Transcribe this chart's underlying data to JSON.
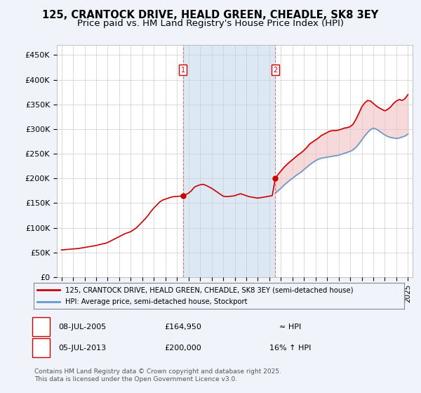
{
  "title": "125, CRANTOCK DRIVE, HEALD GREEN, CHEADLE, SK8 3EY",
  "subtitle": "Price paid vs. HM Land Registry's House Price Index (HPI)",
  "title_fontsize": 10.5,
  "subtitle_fontsize": 9.5,
  "ylabel_ticks": [
    "£0",
    "£50K",
    "£100K",
    "£150K",
    "£200K",
    "£250K",
    "£300K",
    "£350K",
    "£400K",
    "£450K"
  ],
  "ytick_values": [
    0,
    50000,
    100000,
    150000,
    200000,
    250000,
    300000,
    350000,
    400000,
    450000
  ],
  "ylim": [
    0,
    470000
  ],
  "xlim_left": 1994.6,
  "xlim_right": 2025.4,
  "background_color": "#f0f4fa",
  "plot_bg": "#ffffff",
  "shaded_bg_color": "#dde8f5",
  "red_color": "#cc0000",
  "blue_color": "#6699cc",
  "dashed_line_color": "#dd6666",
  "grid_color": "#cccccc",
  "legend1_label": "125, CRANTOCK DRIVE, HEALD GREEN, CHEADLE, SK8 3EY (semi-detached house)",
  "legend2_label": "HPI: Average price, semi-detached house, Stockport",
  "annotation1_date": "08-JUL-2005",
  "annotation1_price": "£164,950",
  "annotation1_hpi": "≈ HPI",
  "annotation2_date": "05-JUL-2013",
  "annotation2_price": "£200,000",
  "annotation2_hpi": "16% ↑ HPI",
  "footer": "Contains HM Land Registry data © Crown copyright and database right 2025.\nThis data is licensed under the Open Government Licence v3.0.",
  "marker1_x_year": 2005.52,
  "marker1_y": 164950,
  "marker2_x_year": 2013.51,
  "marker2_y": 200000,
  "red_line_data": {
    "years": [
      1995.0,
      1995.25,
      1995.5,
      1995.75,
      1996.0,
      1996.25,
      1996.5,
      1996.75,
      1997.0,
      1997.25,
      1997.5,
      1997.75,
      1998.0,
      1998.25,
      1998.5,
      1998.75,
      1999.0,
      1999.25,
      1999.5,
      1999.75,
      2000.0,
      2000.25,
      2000.5,
      2000.75,
      2001.0,
      2001.25,
      2001.5,
      2001.75,
      2002.0,
      2002.25,
      2002.5,
      2002.75,
      2003.0,
      2003.25,
      2003.5,
      2003.75,
      2004.0,
      2004.25,
      2004.5,
      2004.75,
      2005.0,
      2005.25,
      2005.52,
      2005.75,
      2006.0,
      2006.25,
      2006.5,
      2006.75,
      2007.0,
      2007.25,
      2007.5,
      2007.75,
      2008.0,
      2008.25,
      2008.5,
      2008.75,
      2009.0,
      2009.25,
      2009.5,
      2009.75,
      2010.0,
      2010.25,
      2010.5,
      2010.75,
      2011.0,
      2011.25,
      2011.5,
      2011.75,
      2012.0,
      2012.25,
      2012.5,
      2012.75,
      2013.0,
      2013.25,
      2013.51,
      2013.75,
      2014.0,
      2014.25,
      2014.5,
      2014.75,
      2015.0,
      2015.25,
      2015.5,
      2015.75,
      2016.0,
      2016.25,
      2016.5,
      2016.75,
      2017.0,
      2017.25,
      2017.5,
      2017.75,
      2018.0,
      2018.25,
      2018.5,
      2018.75,
      2019.0,
      2019.25,
      2019.5,
      2019.75,
      2020.0,
      2020.25,
      2020.5,
      2020.75,
      2021.0,
      2021.25,
      2021.5,
      2021.75,
      2022.0,
      2022.25,
      2022.5,
      2022.75,
      2023.0,
      2023.25,
      2023.5,
      2023.75,
      2024.0,
      2024.25,
      2024.5,
      2024.75,
      2025.0
    ],
    "values": [
      55000,
      55500,
      56000,
      56500,
      57000,
      57500,
      58000,
      59000,
      60000,
      61000,
      62000,
      63000,
      64000,
      65500,
      67000,
      68000,
      70000,
      73000,
      76000,
      79000,
      82000,
      85000,
      88000,
      90000,
      92000,
      96000,
      100000,
      106000,
      112000,
      118000,
      125000,
      133000,
      140000,
      146000,
      152000,
      156000,
      158000,
      160000,
      162000,
      163000,
      163500,
      164000,
      164950,
      167000,
      170000,
      175000,
      182000,
      185000,
      187000,
      188000,
      186000,
      183000,
      180000,
      176000,
      172000,
      168000,
      164000,
      163000,
      163500,
      164000,
      165000,
      167000,
      169000,
      167000,
      165000,
      163000,
      162000,
      161000,
      160000,
      161000,
      162000,
      163000,
      164000,
      165000,
      200000,
      208000,
      215000,
      222000,
      228000,
      233000,
      238000,
      243000,
      248000,
      252000,
      257000,
      263000,
      270000,
      274000,
      278000,
      282000,
      287000,
      290000,
      293000,
      296000,
      297000,
      297000,
      298000,
      300000,
      302000,
      303000,
      305000,
      310000,
      320000,
      332000,
      345000,
      353000,
      358000,
      357000,
      352000,
      347000,
      343000,
      340000,
      337000,
      340000,
      345000,
      352000,
      357000,
      360000,
      358000,
      362000,
      370000
    ]
  },
  "hpi_line_data": {
    "years": [
      2013.51,
      2013.75,
      2014.0,
      2014.25,
      2014.5,
      2014.75,
      2015.0,
      2015.25,
      2015.5,
      2015.75,
      2016.0,
      2016.25,
      2016.5,
      2016.75,
      2017.0,
      2017.25,
      2017.5,
      2017.75,
      2018.0,
      2018.25,
      2018.5,
      2018.75,
      2019.0,
      2019.25,
      2019.5,
      2019.75,
      2020.0,
      2020.25,
      2020.5,
      2020.75,
      2021.0,
      2021.25,
      2021.5,
      2021.75,
      2022.0,
      2022.25,
      2022.5,
      2022.75,
      2023.0,
      2023.25,
      2023.5,
      2023.75,
      2024.0,
      2024.25,
      2024.5,
      2024.75,
      2025.0
    ],
    "values": [
      170000,
      175000,
      180000,
      186000,
      191000,
      196000,
      200000,
      205000,
      209000,
      213000,
      218000,
      223000,
      228000,
      232000,
      236000,
      239000,
      241000,
      242000,
      243000,
      244000,
      245000,
      246000,
      247000,
      249000,
      251000,
      253000,
      255000,
      258000,
      263000,
      270000,
      278000,
      286000,
      293000,
      299000,
      302000,
      300000,
      296000,
      292000,
      288000,
      285000,
      283000,
      282000,
      281000,
      282000,
      284000,
      286000,
      290000
    ]
  }
}
